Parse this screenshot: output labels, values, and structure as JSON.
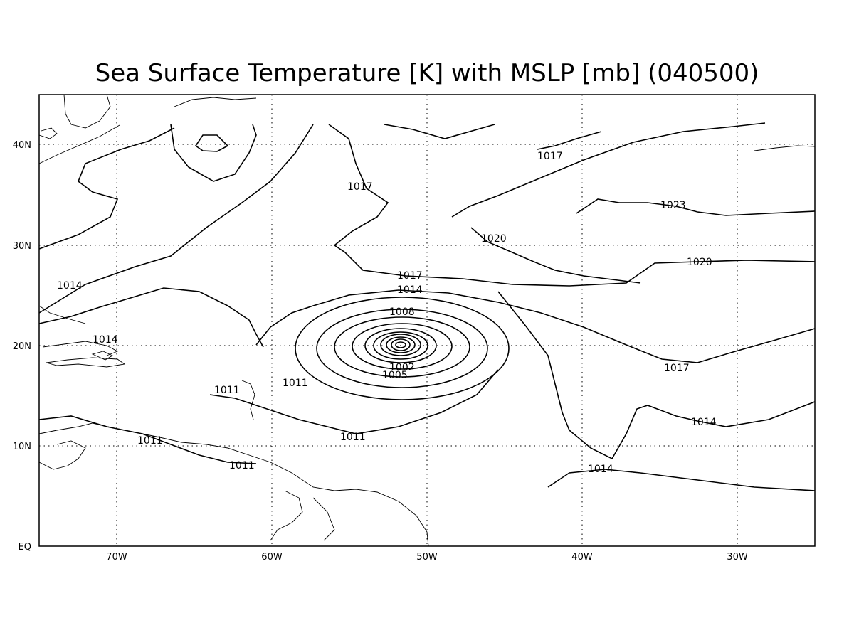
{
  "title": "Sea Surface Temperature [K] with MSLP [mb] (040500)",
  "lon_labels": [
    "70W",
    "60W",
    "50W",
    "40W",
    "30W"
  ],
  "lat_labels": [
    "40N",
    "30N",
    "20N",
    "10N",
    "EQ"
  ],
  "contour_labels": [
    "1017",
    "1017",
    "1023",
    "1020",
    "1020",
    "1017",
    "1014",
    "1008",
    "1014",
    "1014",
    "1002",
    "1005",
    "1011",
    "1011",
    "1017",
    "1011",
    "1011",
    "1011",
    "1014",
    "1014"
  ]
}
